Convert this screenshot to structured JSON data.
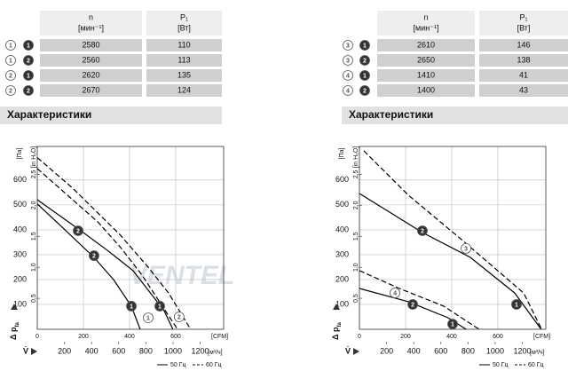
{
  "tables": [
    {
      "header": [
        {
          "symbol": "n",
          "unit": "[мин⁻¹]"
        },
        {
          "symbol": "P₁",
          "unit": "[Вт]"
        }
      ],
      "rows": [
        {
          "m1": "1",
          "m2": "1",
          "n": 2580,
          "p": 110
        },
        {
          "m1": "1",
          "m2": "2",
          "n": 2560,
          "p": 113
        },
        {
          "m1": "2",
          "m2": "1",
          "n": 2620,
          "p": 135
        },
        {
          "m1": "2",
          "m2": "2",
          "n": 2670,
          "p": 124
        }
      ]
    },
    {
      "header": [
        {
          "symbol": "n",
          "unit": "[мин⁻¹]"
        },
        {
          "symbol": "P₁",
          "unit": "[Вт]"
        }
      ],
      "rows": [
        {
          "m1": "3",
          "m2": "1",
          "n": 2610,
          "p": 146
        },
        {
          "m1": "3",
          "m2": "2",
          "n": 2650,
          "p": 138
        },
        {
          "m1": "4",
          "m2": "1",
          "n": 1410,
          "p": 41
        },
        {
          "m1": "4",
          "m2": "2",
          "n": 1400,
          "p": 43
        }
      ]
    }
  ],
  "headings": [
    "Характеристики",
    "Характеристики"
  ],
  "watermark": "VENTEL",
  "chart_data": [
    {
      "type": "line",
      "ylabel": "Δ p",
      "ylabel_sub": "fa",
      "yunit": "[Па]",
      "y2unit": "[in H₂O]",
      "xlabel": "V̇",
      "xunit": "[CFM]",
      "x2unit": "[м³/ч]",
      "xlim": [
        0,
        808
      ],
      "xticks": [
        0,
        200,
        400,
        600
      ],
      "x2lim": [
        0,
        1373
      ],
      "x2ticks": [
        200,
        400,
        600,
        800,
        1000,
        1200
      ],
      "ylim": [
        0,
        735
      ],
      "yticks": [
        100,
        200,
        300,
        400,
        500,
        600
      ],
      "y2lim": [
        0,
        2.95
      ],
      "y2ticks": [
        {
          "value": 0.5,
          "label": "0,5"
        },
        {
          "value": 1,
          "label": "1,0"
        },
        {
          "value": 1.5,
          "label": "1,5"
        },
        {
          "value": 2,
          "label": "2,0"
        },
        {
          "value": 2.5,
          "label": "2,5"
        }
      ],
      "grid": true,
      "series": [
        {
          "dashed": true,
          "color": "#000000",
          "x": [
            0,
            150,
            360,
            480,
            569,
            665
          ],
          "y": [
            690,
            570,
            379,
            250,
            146,
            0
          ]
        },
        {
          "dashed": true,
          "color": "#000000",
          "x": [
            0,
            130,
            262,
            360,
            454,
            608
          ],
          "y": [
            646,
            540,
            432,
            330,
            218,
            0
          ]
        },
        {
          "dashed": false,
          "color": "#000000",
          "x": [
            0,
            177,
            300,
            415,
            550,
            588
          ],
          "y": [
            521,
            404,
            320,
            236,
            75,
            0
          ]
        },
        {
          "dashed": false,
          "color": "#000000",
          "x": [
            0,
            120,
            246,
            330,
            408,
            446
          ],
          "y": [
            504,
            400,
            289,
            200,
            93,
            0
          ]
        }
      ],
      "markers": [
        {
          "label": "2",
          "filled": true,
          "x": 177,
          "y": 396
        },
        {
          "label": "2",
          "filled": true,
          "x": 246,
          "y": 296
        },
        {
          "label": "1",
          "filled": true,
          "x": 408,
          "y": 93
        },
        {
          "label": "1",
          "filled": false,
          "x": 481,
          "y": 46
        },
        {
          "label": "1",
          "filled": true,
          "x": 531,
          "y": 93
        },
        {
          "label": "2",
          "filled": false,
          "x": 615,
          "y": 50
        }
      ],
      "legend": [
        {
          "label": "50 Гц",
          "dashed": false
        },
        {
          "label": "60 Гц",
          "dashed": true
        }
      ]
    },
    {
      "type": "line",
      "ylabel": "Δ p",
      "ylabel_sub": "fa",
      "yunit": "[Па]",
      "y2unit": "[in H₂O]",
      "xlabel": "V̇",
      "xunit": "[CFM]",
      "x2unit": "[м³/ч]",
      "xlim": [
        0,
        808
      ],
      "xticks": [
        0,
        200,
        400,
        600
      ],
      "x2lim": [
        0,
        1373
      ],
      "x2ticks": [
        200,
        400,
        600,
        800,
        1000,
        1200
      ],
      "ylim": [
        0,
        735
      ],
      "yticks": [
        100,
        200,
        300,
        400,
        500,
        600
      ],
      "y2lim": [
        0,
        2.95
      ],
      "y2ticks": [
        {
          "value": 0.5,
          "label": "0,5"
        },
        {
          "value": 1,
          "label": "1,0"
        },
        {
          "value": 1.5,
          "label": "1,5"
        },
        {
          "value": 2,
          "label": "2,0"
        },
        {
          "value": 2.5,
          "label": "2,5"
        }
      ],
      "grid": true,
      "series": [
        {
          "dashed": true,
          "color": "#000000",
          "x": [
            19,
            212,
            442,
            712,
            790
          ],
          "y": [
            718,
            539,
            361,
            146,
            0
          ]
        },
        {
          "dashed": false,
          "color": "#000000",
          "x": [
            0,
            135,
            273,
            481,
            673,
            788
          ],
          "y": [
            546,
            468,
            389,
            289,
            146,
            0
          ]
        },
        {
          "dashed": true,
          "color": "#000000",
          "x": [
            0,
            173,
            365,
            519
          ],
          "y": [
            236,
            164,
            93,
            0
          ]
        },
        {
          "dashed": false,
          "color": "#000000",
          "x": [
            0,
            212,
            385,
            462
          ],
          "y": [
            164,
            111,
            46,
            0
          ]
        }
      ],
      "markers": [
        {
          "label": "2",
          "filled": true,
          "x": 273,
          "y": 396
        },
        {
          "label": "3",
          "filled": false,
          "x": 462,
          "y": 325
        },
        {
          "label": "4",
          "filled": false,
          "x": 154,
          "y": 146
        },
        {
          "label": "2",
          "filled": true,
          "x": 231,
          "y": 100
        },
        {
          "label": "1",
          "filled": true,
          "x": 404,
          "y": 21
        },
        {
          "label": "1",
          "filled": true,
          "x": 681,
          "y": 100
        }
      ],
      "legend": [
        {
          "label": "50 Гц",
          "dashed": false
        },
        {
          "label": "60 Гц",
          "dashed": true
        }
      ]
    }
  ]
}
